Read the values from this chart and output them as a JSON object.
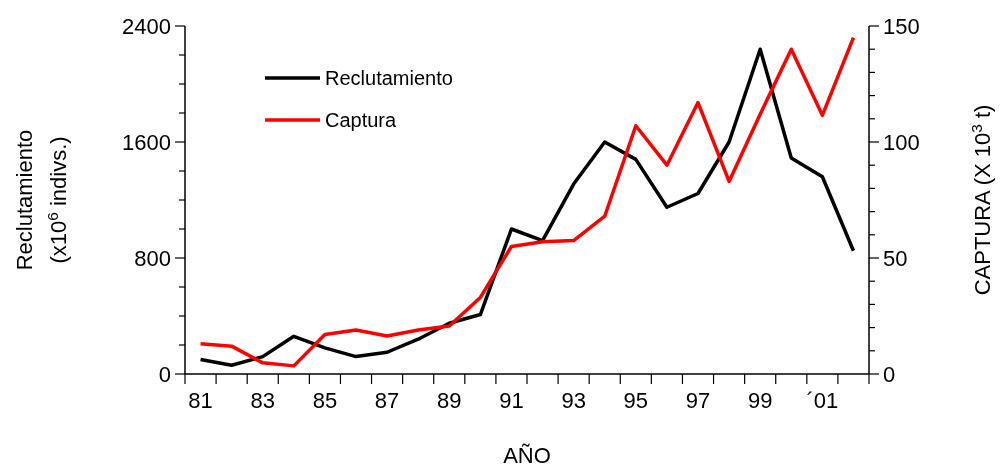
{
  "chart_data": {
    "type": "line",
    "xlabel": "AÑO",
    "ylabel": "Reclutamiento\n(x10$^{6}$ indivs.)",
    "y2label": "CAPTURA (X 10$^{3}$ t)",
    "categories": [
      "81",
      null,
      "83",
      null,
      "85",
      null,
      "87",
      null,
      "89",
      null,
      "91",
      null,
      "93",
      null,
      "95",
      null,
      "97",
      null,
      "99",
      null,
      "´01",
      null
    ],
    "ylim": [
      0,
      2400
    ],
    "yticks": [
      0,
      {
        "value": 200,
        "label": null
      },
      {
        "value": 400,
        "label": null
      },
      {
        "value": 600,
        "label": null
      },
      800,
      {
        "value": 1000,
        "label": null
      },
      {
        "value": 1200,
        "label": null
      },
      {
        "value": 1400,
        "label": null
      },
      1600,
      {
        "value": 1800,
        "label": null
      },
      {
        "value": 2000,
        "label": null
      },
      {
        "value": 2200,
        "label": null
      },
      2400
    ],
    "y2lim": [
      0,
      150
    ],
    "y2ticks": [
      0,
      {
        "value": 10,
        "label": null
      },
      {
        "value": 20,
        "label": null
      },
      {
        "value": 30,
        "label": null
      },
      {
        "value": 40,
        "label": null
      },
      50,
      {
        "value": 60,
        "label": null
      },
      {
        "value": 70,
        "label": null
      },
      {
        "value": 80,
        "label": null
      },
      {
        "value": 90,
        "label": null
      },
      100,
      {
        "value": 110,
        "label": null
      },
      {
        "value": 120,
        "label": null
      },
      {
        "value": 130,
        "label": null
      },
      {
        "value": 140,
        "label": null
      },
      150
    ],
    "legend": "top left",
    "line_style": "solid",
    "series": [
      {
        "name": "Reclutamiento",
        "color": "#000000",
        "values": [
          100,
          60,
          120,
          260,
          180,
          120,
          150,
          240,
          350,
          410,
          1000,
          920,
          1310,
          1600,
          1480,
          1150,
          1245,
          1600,
          2240,
          1490,
          1360,
          850
        ]
      },
      {
        "name": "Captura",
        "color": "#ff0000",
        "axis": "y2",
        "values": [
          13,
          12,
          4.8,
          3.5,
          17,
          19,
          16.4,
          19,
          20.7,
          33,
          55,
          57,
          57.5,
          68,
          107,
          90,
          117,
          83,
          112,
          140,
          111.5,
          145
        ]
      }
    ]
  }
}
